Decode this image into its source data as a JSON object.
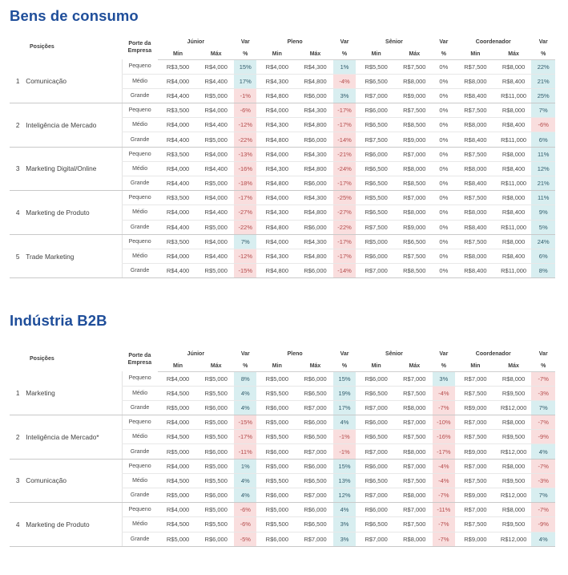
{
  "sections": [
    {
      "title": "Bens de consumo",
      "headers": {
        "posicoes": "Posições",
        "porte_line1": "Porte da",
        "porte_line2": "Empresa",
        "groups": [
          "Júnior",
          "Pleno",
          "Sênior",
          "Coordenador"
        ],
        "var": "Var",
        "min": "Min",
        "max": "Máx",
        "pct": "%"
      },
      "rows": [
        {
          "index": "1",
          "label": "Comunicação",
          "sizes": [
            {
              "size": "Pequeno",
              "vals": [
                "R$3,500",
                "R$4,000",
                "15%",
                "R$4,000",
                "R$4,300",
                "1%",
                "R$5,500",
                "R$7,500",
                "0%",
                "R$7,500",
                "R$8,000",
                "22%"
              ]
            },
            {
              "size": "Médio",
              "vals": [
                "R$4,000",
                "R$4,400",
                "17%",
                "R$4,300",
                "R$4,800",
                "-4%",
                "R$6,500",
                "R$8,000",
                "0%",
                "R$8,000",
                "R$8,400",
                "21%"
              ]
            },
            {
              "size": "Grande",
              "vals": [
                "R$4,400",
                "R$5,000",
                "-1%",
                "R$4,800",
                "R$6,000",
                "3%",
                "R$7,000",
                "R$9,000",
                "0%",
                "R$8,400",
                "R$11,000",
                "25%"
              ]
            }
          ]
        },
        {
          "index": "2",
          "label": "Inteligência de Mercado",
          "sizes": [
            {
              "size": "Pequeno",
              "vals": [
                "R$3,500",
                "R$4,000",
                "-6%",
                "R$4,000",
                "R$4,300",
                "-17%",
                "R$6,000",
                "R$7,500",
                "0%",
                "R$7,500",
                "R$8,000",
                "7%"
              ]
            },
            {
              "size": "Médio",
              "vals": [
                "R$4,000",
                "R$4,400",
                "-12%",
                "R$4,300",
                "R$4,800",
                "-17%",
                "R$6,500",
                "R$8,500",
                "0%",
                "R$8,000",
                "R$8,400",
                "-6%"
              ]
            },
            {
              "size": "Grande",
              "vals": [
                "R$4,400",
                "R$5,000",
                "-22%",
                "R$4,800",
                "R$6,000",
                "-14%",
                "R$7,500",
                "R$9,000",
                "0%",
                "R$8,400",
                "R$11,000",
                "6%"
              ]
            }
          ]
        },
        {
          "index": "3",
          "label": "Marketing Digital/Online",
          "sizes": [
            {
              "size": "Pequeno",
              "vals": [
                "R$3,500",
                "R$4,000",
                "-13%",
                "R$4,000",
                "R$4,300",
                "-21%",
                "R$6,000",
                "R$7,000",
                "0%",
                "R$7,500",
                "R$8,000",
                "11%"
              ]
            },
            {
              "size": "Médio",
              "vals": [
                "R$4,000",
                "R$4,400",
                "-16%",
                "R$4,300",
                "R$4,800",
                "-24%",
                "R$6,500",
                "R$8,000",
                "0%",
                "R$8,000",
                "R$8,400",
                "12%"
              ]
            },
            {
              "size": "Grande",
              "vals": [
                "R$4,400",
                "R$5,000",
                "-18%",
                "R$4,800",
                "R$6,000",
                "-17%",
                "R$6,500",
                "R$8,500",
                "0%",
                "R$8,400",
                "R$11,000",
                "21%"
              ]
            }
          ]
        },
        {
          "index": "4",
          "label": "Marketing de Produto",
          "sizes": [
            {
              "size": "Pequeno",
              "vals": [
                "R$3,500",
                "R$4,000",
                "-17%",
                "R$4,000",
                "R$4,300",
                "-25%",
                "R$5,500",
                "R$7,000",
                "0%",
                "R$7,500",
                "R$8,000",
                "11%"
              ]
            },
            {
              "size": "Médio",
              "vals": [
                "R$4,000",
                "R$4,400",
                "-27%",
                "R$4,300",
                "R$4,800",
                "-27%",
                "R$6,500",
                "R$8,000",
                "0%",
                "R$8,000",
                "R$8,400",
                "9%"
              ]
            },
            {
              "size": "Grande",
              "vals": [
                "R$4,400",
                "R$5,000",
                "-22%",
                "R$4,800",
                "R$6,000",
                "-22%",
                "R$7,500",
                "R$9,000",
                "0%",
                "R$8,400",
                "R$11,000",
                "5%"
              ]
            }
          ]
        },
        {
          "index": "5",
          "label": "Trade Marketing",
          "sizes": [
            {
              "size": "Pequeno",
              "vals": [
                "R$3,500",
                "R$4,000",
                "7%",
                "R$4,000",
                "R$4,300",
                "-17%",
                "R$5,000",
                "R$6,500",
                "0%",
                "R$7,500",
                "R$8,000",
                "24%"
              ]
            },
            {
              "size": "Médio",
              "vals": [
                "R$4,000",
                "R$4,400",
                "-12%",
                "R$4,300",
                "R$4,800",
                "-17%",
                "R$6,000",
                "R$7,500",
                "0%",
                "R$8,000",
                "R$8,400",
                "6%"
              ]
            },
            {
              "size": "Grande",
              "vals": [
                "R$4,400",
                "R$5,000",
                "-15%",
                "R$4,800",
                "R$6,000",
                "-14%",
                "R$7,000",
                "R$8,500",
                "0%",
                "R$8,400",
                "R$11,000",
                "8%"
              ]
            }
          ]
        }
      ]
    },
    {
      "title": "Indústria B2B",
      "headers": {
        "posicoes": "Posições",
        "porte_line1": "Porte da",
        "porte_line2": "Empresa",
        "groups": [
          "Júnior",
          "Pleno",
          "Sênior",
          "Coordenador"
        ],
        "var": "Var",
        "min": "Min",
        "max": "Máx",
        "pct": "%"
      },
      "rows": [
        {
          "index": "1",
          "label": "Marketing",
          "sizes": [
            {
              "size": "Pequeno",
              "vals": [
                "R$4,000",
                "R$5,000",
                "8%",
                "R$5,000",
                "R$6,000",
                "15%",
                "R$6,000",
                "R$7,000",
                "3%",
                "R$7,000",
                "R$8,000",
                "-7%"
              ]
            },
            {
              "size": "Médio",
              "vals": [
                "R$4,500",
                "R$5,500",
                "4%",
                "R$5,500",
                "R$6,500",
                "19%",
                "R$6,500",
                "R$7,500",
                "-4%",
                "R$7,500",
                "R$9,500",
                "-3%"
              ]
            },
            {
              "size": "Grande",
              "vals": [
                "R$5,000",
                "R$6,000",
                "4%",
                "R$6,000",
                "R$7,000",
                "17%",
                "R$7,000",
                "R$8,000",
                "-7%",
                "R$9,000",
                "R$12,000",
                "7%"
              ]
            }
          ]
        },
        {
          "index": "2",
          "label": "Inteligência de Mercado*",
          "sizes": [
            {
              "size": "Pequeno",
              "vals": [
                "R$4,000",
                "R$5,000",
                "-15%",
                "R$5,000",
                "R$6,000",
                "4%",
                "R$6,000",
                "R$7,000",
                "-10%",
                "R$7,000",
                "R$8,000",
                "-7%"
              ]
            },
            {
              "size": "Médio",
              "vals": [
                "R$4,500",
                "R$5,500",
                "-17%",
                "R$5,500",
                "R$6,500",
                "-1%",
                "R$6,500",
                "R$7,500",
                "-16%",
                "R$7,500",
                "R$9,500",
                "-9%"
              ]
            },
            {
              "size": "Grande",
              "vals": [
                "R$5,000",
                "R$6,000",
                "-11%",
                "R$6,000",
                "R$7,000",
                "-1%",
                "R$7,000",
                "R$8,000",
                "-17%",
                "R$9,000",
                "R$12,000",
                "4%"
              ]
            }
          ]
        },
        {
          "index": "3",
          "label": "Comunicação",
          "sizes": [
            {
              "size": "Pequeno",
              "vals": [
                "R$4,000",
                "R$5,000",
                "1%",
                "R$5,000",
                "R$6,000",
                "15%",
                "R$6,000",
                "R$7,000",
                "-4%",
                "R$7,000",
                "R$8,000",
                "-7%"
              ]
            },
            {
              "size": "Médio",
              "vals": [
                "R$4,500",
                "R$5,500",
                "4%",
                "R$5,500",
                "R$6,500",
                "13%",
                "R$6,500",
                "R$7,500",
                "-4%",
                "R$7,500",
                "R$9,500",
                "-3%"
              ]
            },
            {
              "size": "Grande",
              "vals": [
                "R$5,000",
                "R$6,000",
                "4%",
                "R$6,000",
                "R$7,000",
                "12%",
                "R$7,000",
                "R$8,000",
                "-7%",
                "R$9,000",
                "R$12,000",
                "7%"
              ]
            }
          ]
        },
        {
          "index": "4",
          "label": "Marketing de Produto",
          "sizes": [
            {
              "size": "Pequeno",
              "vals": [
                "R$4,000",
                "R$5,000",
                "-6%",
                "R$5,000",
                "R$6,000",
                "4%",
                "R$6,000",
                "R$7,000",
                "-11%",
                "R$7,000",
                "R$8,000",
                "-7%"
              ]
            },
            {
              "size": "Médio",
              "vals": [
                "R$4,500",
                "R$5,500",
                "-6%",
                "R$5,500",
                "R$6,500",
                "3%",
                "R$6,500",
                "R$7,500",
                "-7%",
                "R$7,500",
                "R$9,500",
                "-9%"
              ]
            },
            {
              "size": "Grande",
              "vals": [
                "R$5,000",
                "R$6,000",
                "-5%",
                "R$6,000",
                "R$7,000",
                "3%",
                "R$7,000",
                "R$8,000",
                "-7%",
                "R$9,000",
                "R$12,000",
                "4%"
              ]
            }
          ]
        }
      ]
    }
  ]
}
